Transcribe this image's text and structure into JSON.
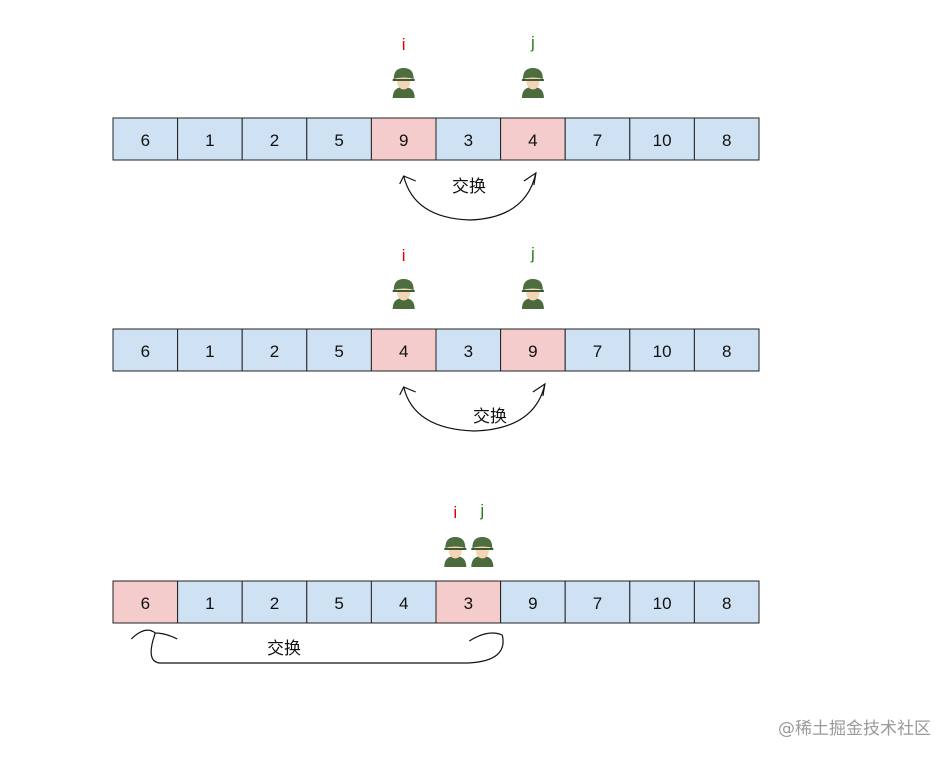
{
  "colors": {
    "normal": "#cfe2f3",
    "highlight": "#f4cccc",
    "i_label": "#e00000",
    "j_label": "#2e7d1e"
  },
  "swap_label": "交换",
  "pointer_i": "i",
  "pointer_j": "j",
  "icon": "soldier-icon",
  "steps": [
    {
      "values": [
        6,
        1,
        2,
        5,
        9,
        3,
        4,
        7,
        10,
        8
      ],
      "highlight": [
        4,
        6
      ],
      "i": 4,
      "j": 6,
      "swap": [
        4,
        6
      ]
    },
    {
      "values": [
        6,
        1,
        2,
        5,
        4,
        3,
        9,
        7,
        10,
        8
      ],
      "highlight": [
        4,
        6
      ],
      "i": 4,
      "j": 6,
      "swap": [
        4,
        6
      ]
    },
    {
      "values": [
        6,
        1,
        2,
        5,
        4,
        3,
        9,
        7,
        10,
        8
      ],
      "highlight": [
        0,
        5
      ],
      "i": 5,
      "j": 5,
      "swap": [
        0,
        5
      ]
    }
  ],
  "watermark": "@稀土掘金技术社区"
}
